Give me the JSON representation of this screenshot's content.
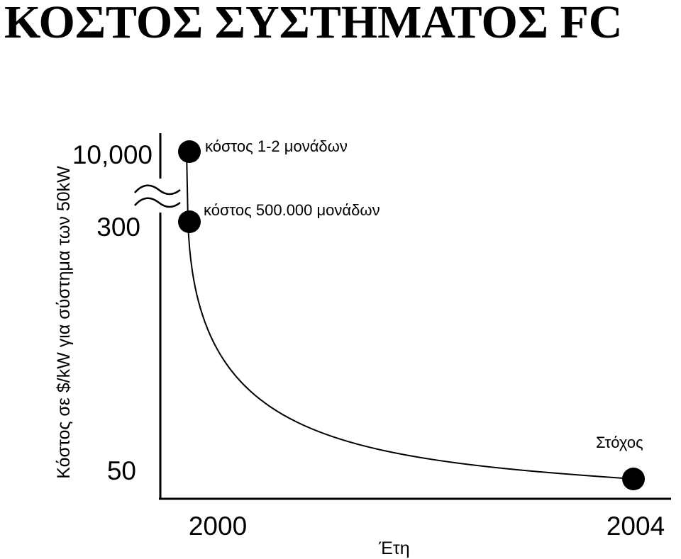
{
  "title": "ΚΟΣΤΟΣ ΣΥΣΤΗΜΑΤΟΣ FC",
  "chart_data": {
    "type": "line",
    "xlabel": "Έτη",
    "ylabel": "Κόστος σε $/kW για σύστημα των 50kW",
    "x_ticks": [
      "2000",
      "2004"
    ],
    "y_ticks": [
      "10,000",
      "300",
      "50"
    ],
    "y_axis_break": true,
    "series": [
      {
        "x": [
          2000,
          2000,
          2004
        ],
        "y": [
          10000,
          300,
          50
        ]
      }
    ],
    "annotations": [
      {
        "label": "κόστος 1-2 μονάδων",
        "x": 2000,
        "y": 10000
      },
      {
        "label": "κόστος 500.000 μονάδων",
        "x": 2000,
        "y": 300
      },
      {
        "label": "Στόχος",
        "x": 2004,
        "y": 50
      }
    ],
    "grid": false,
    "legend": "none"
  }
}
